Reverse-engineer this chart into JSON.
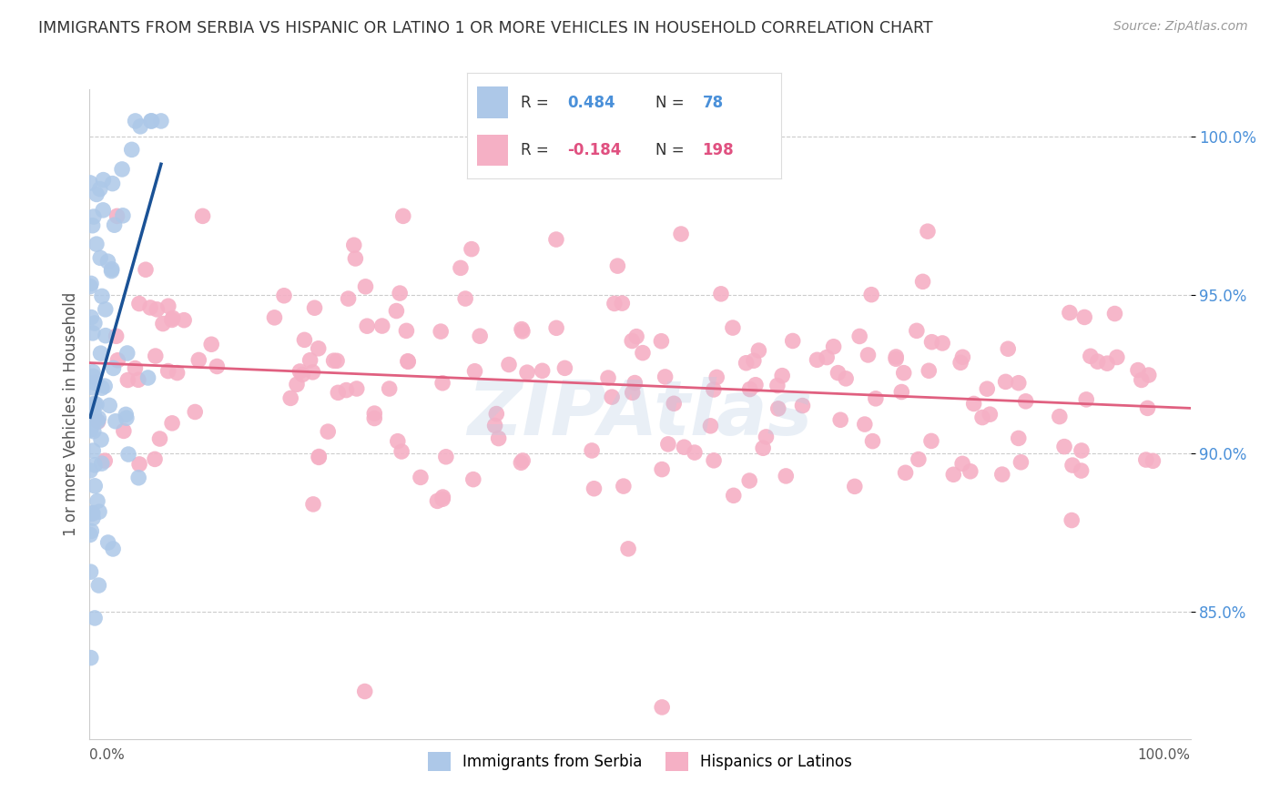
{
  "title": "IMMIGRANTS FROM SERBIA VS HISPANIC OR LATINO 1 OR MORE VEHICLES IN HOUSEHOLD CORRELATION CHART",
  "source": "Source: ZipAtlas.com",
  "ylabel": "1 or more Vehicles in Household",
  "R_blue": 0.484,
  "N_blue": 78,
  "R_pink": -0.184,
  "N_pink": 198,
  "blue_color": "#adc8e8",
  "blue_line_color": "#1a5296",
  "pink_color": "#f5b0c5",
  "pink_line_color": "#e06080",
  "legend_label_blue": "Immigrants from Serbia",
  "legend_label_pink": "Hispanics or Latinos",
  "bg_color": "#ffffff",
  "grid_color": "#cccccc",
  "title_color": "#333333",
  "source_color": "#999999",
  "watermark_color": "#b8cce4",
  "watermark_text": "ZIPAtlas",
  "tick_label_color": "#4a90d9",
  "y_ticks": [
    85,
    90,
    95,
    100
  ],
  "y_tick_labels": [
    "85.0%",
    "90.0%",
    "95.0%",
    "100.0%"
  ],
  "ylim_min": 81.0,
  "ylim_max": 101.5,
  "xlim_min": 0.0,
  "xlim_max": 1.0,
  "legend_R_label": "R = ",
  "legend_N_label": "N = ",
  "legend_blue_R": "0.484",
  "legend_blue_N": "78",
  "legend_pink_R": "-0.184",
  "legend_pink_N": "198",
  "legend_text_color": "#333333",
  "legend_value_color_blue": "#4a90d9",
  "legend_value_color_pink": "#e05080"
}
